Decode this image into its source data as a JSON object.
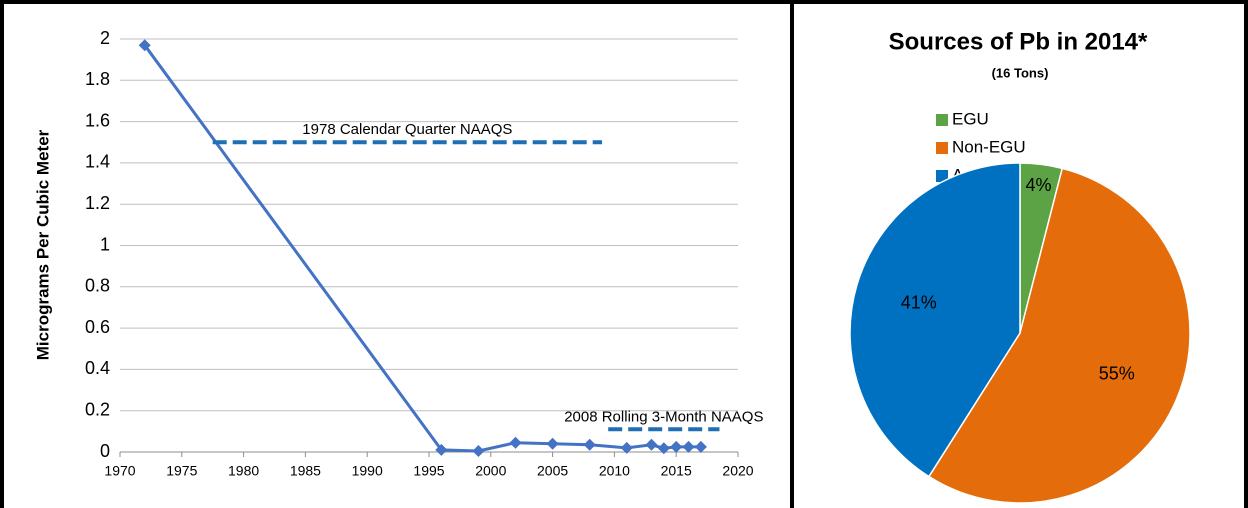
{
  "chart_data": [
    {
      "type": "line",
      "y_label": "Micrograms Per Cubic Meter",
      "xlim": [
        1970,
        2020
      ],
      "xticks": [
        1970,
        1975,
        1980,
        1985,
        1990,
        1995,
        2000,
        2005,
        2010,
        2015,
        2020
      ],
      "ylim": [
        0,
        2
      ],
      "yticks": [
        0,
        0.2,
        0.4,
        0.6,
        0.8,
        1,
        1.2,
        1.4,
        1.6,
        1.8,
        2
      ],
      "grid": true,
      "series": [
        {
          "color": "#4472c4",
          "style": "solid",
          "marker": "diamond",
          "x": [
            1972,
            1996,
            1999,
            2002,
            2005,
            2008,
            2011,
            2013,
            2014,
            2015,
            2016,
            2017
          ],
          "values": [
            1.97,
            0.01,
            0.005,
            0.045,
            0.04,
            0.035,
            0.02,
            0.035,
            0.018,
            0.025,
            0.025,
            0.025
          ]
        },
        {
          "name": "1978 Calendar Quarter NAAQS",
          "color": "#1f6fb5",
          "style": "dashed",
          "x": [
            1977.5,
            2009
          ],
          "values": [
            1.5,
            1.5
          ]
        },
        {
          "name": "2008 Rolling 3-Month NAAQS",
          "color": "#1f6fb5",
          "style": "dashed",
          "x": [
            2009.5,
            2018.5
          ],
          "values": [
            0.11,
            0.11
          ]
        }
      ]
    },
    {
      "type": "pie",
      "title": "Sources of Pb in 2014*",
      "subtitle": "(16 Tons)",
      "categories": [
        "EGU",
        "Non-EGU",
        "Area Sources"
      ],
      "values": [
        4,
        55,
        41
      ],
      "value_labels": [
        "4%",
        "55%",
        "41%"
      ],
      "colors": [
        "#5ba345",
        "#e46c0a",
        "#0070c0"
      ],
      "label_colors": [
        "#000000",
        "#000000",
        "#ffffff"
      ]
    }
  ]
}
